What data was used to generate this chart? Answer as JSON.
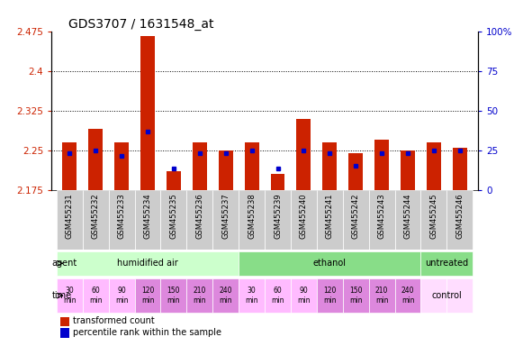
{
  "title": "GDS3707 / 1631548_at",
  "samples": [
    "GSM455231",
    "GSM455232",
    "GSM455233",
    "GSM455234",
    "GSM455235",
    "GSM455236",
    "GSM455237",
    "GSM455238",
    "GSM455239",
    "GSM455240",
    "GSM455241",
    "GSM455242",
    "GSM455243",
    "GSM455244",
    "GSM455245",
    "GSM455246"
  ],
  "red_values": [
    2.265,
    2.29,
    2.265,
    2.465,
    2.21,
    2.265,
    2.25,
    2.265,
    2.205,
    2.31,
    2.265,
    2.245,
    2.27,
    2.25,
    2.265,
    2.255
  ],
  "blue_values": [
    2.245,
    2.25,
    2.24,
    2.285,
    2.215,
    2.245,
    2.245,
    2.25,
    2.215,
    2.25,
    2.245,
    2.22,
    2.245,
    2.245,
    2.25,
    2.25
  ],
  "ymin": 2.175,
  "ymax": 2.475,
  "yticks": [
    2.175,
    2.25,
    2.325,
    2.4,
    2.475
  ],
  "ytick_labels": [
    "2.175",
    "2.25",
    "2.325",
    "2.4",
    "2.475"
  ],
  "right_yticks": [
    0,
    25,
    50,
    75,
    100
  ],
  "right_ytick_labels": [
    "0",
    "25",
    "50",
    "75",
    "100%"
  ],
  "dotted_lines": [
    2.25,
    2.325,
    2.4
  ],
  "bar_color": "#cc2200",
  "blue_color": "#0000cc",
  "segments_agent": [
    {
      "label": "humidified air",
      "start": 0,
      "end": 7,
      "color": "#ccffcc"
    },
    {
      "label": "ethanol",
      "start": 7,
      "end": 14,
      "color": "#88dd88"
    },
    {
      "label": "untreated",
      "start": 14,
      "end": 16,
      "color": "#88dd88"
    }
  ],
  "time_labels_14": [
    "30\nmin",
    "60\nmin",
    "90\nmin",
    "120\nmin",
    "150\nmin",
    "210\nmin",
    "240\nmin",
    "30\nmin",
    "60\nmin",
    "90\nmin",
    "120\nmin",
    "150\nmin",
    "210\nmin",
    "240\nmin"
  ],
  "time_dark_indices": [
    3,
    4,
    5,
    6,
    10,
    11,
    12,
    13
  ],
  "tc_light": "#ffbbff",
  "tc_dark": "#dd88dd",
  "tc_control": "#ffddff",
  "legend_red": "transformed count",
  "legend_blue": "percentile rank within the sample",
  "bar_width": 0.55,
  "label_color_left": "#cc2200",
  "label_color_right": "#0000cc",
  "gray_sample_bg": "#cccccc",
  "sample_label_fontsize": 6,
  "title_fontsize": 10
}
